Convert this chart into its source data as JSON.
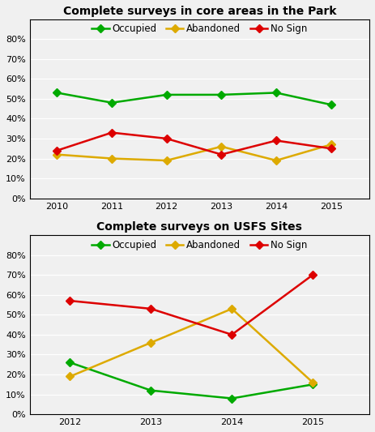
{
  "top": {
    "title": "Complete surveys in core areas in the Park",
    "years": [
      2010,
      2011,
      2012,
      2013,
      2014,
      2015
    ],
    "occupied": [
      0.53,
      0.48,
      0.52,
      0.52,
      0.53,
      0.47
    ],
    "abandoned": [
      0.22,
      0.2,
      0.19,
      0.26,
      0.19,
      0.27
    ],
    "nosign": [
      0.24,
      0.33,
      0.3,
      0.22,
      0.29,
      0.25
    ],
    "ylim": [
      0,
      0.9
    ],
    "yticks": [
      0.0,
      0.1,
      0.2,
      0.3,
      0.4,
      0.5,
      0.6,
      0.7,
      0.8
    ]
  },
  "bottom": {
    "title": "Complete surveys on USFS Sites",
    "years": [
      2012,
      2013,
      2014,
      2015
    ],
    "occupied": [
      0.26,
      0.12,
      0.08,
      0.15
    ],
    "abandoned": [
      0.19,
      0.36,
      0.53,
      0.16
    ],
    "nosign": [
      0.57,
      0.53,
      0.4,
      0.7
    ],
    "ylim": [
      0,
      0.9
    ],
    "yticks": [
      0.0,
      0.1,
      0.2,
      0.3,
      0.4,
      0.5,
      0.6,
      0.7,
      0.8
    ]
  },
  "color_occupied": "#00aa00",
  "color_abandoned": "#ddaa00",
  "color_nosign": "#dd0000",
  "marker": "D",
  "markersize": 5,
  "linewidth": 1.8,
  "legend_fontsize": 8.5,
  "title_fontsize": 10,
  "tick_fontsize": 8,
  "bg_color": "#f0f0f0",
  "plot_bg_color": "#f0f0f0"
}
